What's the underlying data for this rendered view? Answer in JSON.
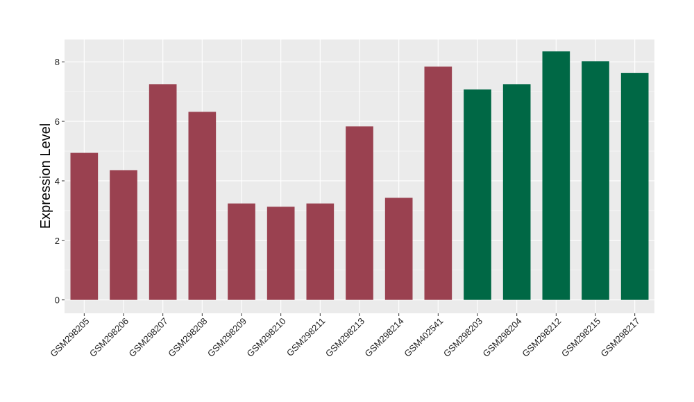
{
  "chart_data": {
    "type": "bar",
    "title": "",
    "xlabel": "",
    "ylabel": "Expression Level",
    "ylim": [
      -0.45,
      8.75
    ],
    "yticks": [
      0,
      2,
      4,
      6,
      8
    ],
    "grid": true,
    "categories": [
      "GSM298205",
      "GSM298206",
      "GSM298207",
      "GSM298208",
      "GSM298209",
      "GSM298210",
      "GSM298211",
      "GSM298213",
      "GSM298214",
      "GSM402541",
      "GSM298203",
      "GSM298204",
      "GSM298212",
      "GSM298215",
      "GSM298217"
    ],
    "values": [
      4.94,
      4.36,
      7.25,
      6.32,
      3.24,
      3.13,
      3.24,
      5.83,
      3.43,
      7.84,
      7.07,
      7.25,
      8.35,
      8.02,
      7.63
    ],
    "groups": [
      0,
      0,
      0,
      0,
      0,
      0,
      0,
      0,
      0,
      0,
      1,
      1,
      1,
      1,
      1
    ],
    "colors": [
      "#9a4150",
      "#006845"
    ]
  }
}
